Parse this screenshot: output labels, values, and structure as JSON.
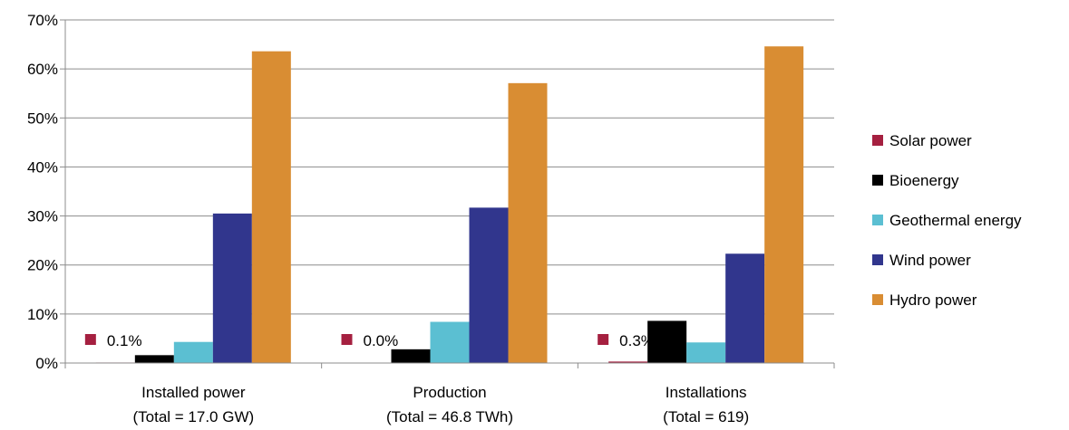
{
  "chart_data": {
    "type": "bar",
    "categories": [
      [
        "Installed power",
        "(Total = 17.0 GW)"
      ],
      [
        "Production",
        "(Total = 46.8 TWh)"
      ],
      [
        "Installations",
        "(Total = 619)"
      ]
    ],
    "ylim": [
      0,
      70
    ],
    "yticks": [
      "0%",
      "10%",
      "20%",
      "30%",
      "40%",
      "50%",
      "60%",
      "70%"
    ],
    "grid": true,
    "legend_position": "right",
    "series": [
      {
        "name": "Solar power",
        "color": "#a52040",
        "values": [
          0.1,
          0.0,
          0.3
        ]
      },
      {
        "name": "Bioenergy",
        "color": "#000000",
        "values": [
          1.6,
          2.8,
          8.6
        ]
      },
      {
        "name": "Geothermal energy",
        "color": "#5bbfd2",
        "values": [
          4.3,
          8.4,
          4.2
        ]
      },
      {
        "name": "Wind power",
        "color": "#31368d",
        "values": [
          30.5,
          31.7,
          22.3
        ]
      },
      {
        "name": "Hydro power",
        "color": "#d98d33",
        "values": [
          63.6,
          57.1,
          64.6
        ]
      }
    ],
    "annotations": [
      {
        "category": 0,
        "text": "0.1%",
        "color": "#a52040"
      },
      {
        "category": 1,
        "text": "0.0%",
        "color": "#a52040"
      },
      {
        "category": 2,
        "text": "0.3%",
        "color": "#a52040"
      }
    ]
  }
}
